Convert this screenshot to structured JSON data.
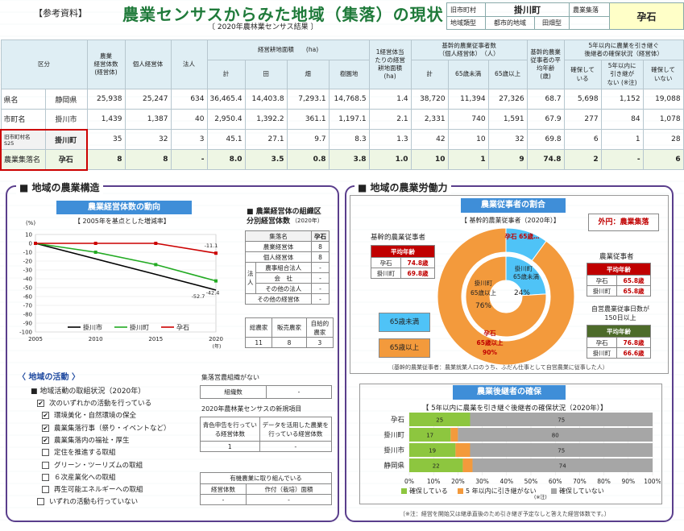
{
  "header": {
    "tag": "【参考資料】",
    "title": "農業センサスからみた地域（集落）の現状",
    "subtitle": "〔 2020年農林業センサス結果 〕",
    "old_town_label": "旧市町村",
    "old_town_value": "掛川町",
    "area_type_label": "地域類型",
    "area_type_value1": "都市的地域",
    "area_type_value2": "田畑型",
    "village_label": "農業集落",
    "village_value": "孕石"
  },
  "main_table": {
    "col_kubun": "区分",
    "col_mgmt": "農業\n経営体数\n(経営体)",
    "col_indiv": "個人経営体",
    "col_corp": "法人",
    "col_land_group": "経営耕地面積　　(ha)",
    "col_total": "計",
    "col_paddy": "田",
    "col_field": "畑",
    "col_orchard": "樹園地",
    "col_per": "1経営体当\nたりの経営\n耕地面積\n(ha)",
    "col_worker_group": "基幹的農業従事者数\n（個人経営体）　（人）",
    "col_wtotal": "計",
    "col_u65": "65歳未満",
    "col_o65": "65歳以上",
    "col_avgage": "基幹的農業\n従事者の平\n均年齢\n(歳)",
    "col_succ_group": "5年以内に農業を引き継ぐ\n後継者の確保状況（経営体）",
    "col_s1": "確保して\nいる",
    "col_s2": "5年以内に\n引き継が\nない (※注)",
    "col_s3": "確保して\nいない",
    "rows": [
      {
        "l1": "県名",
        "l2": "静岡県",
        "v": [
          "25,938",
          "25,247",
          "634",
          "36,465.4",
          "14,403.8",
          "7,293.1",
          "14,768.5",
          "1.4",
          "38,720",
          "11,394",
          "27,326",
          "68.7",
          "5,698",
          "1,152",
          "19,088"
        ]
      },
      {
        "l1": "市町名",
        "l2": "掛川市",
        "v": [
          "1,439",
          "1,387",
          "40",
          "2,950.4",
          "1,392.2",
          "361.1",
          "1,197.1",
          "2.1",
          "2,331",
          "740",
          "1,591",
          "67.9",
          "277",
          "84",
          "1,078"
        ]
      },
      {
        "l1": "旧市町村名\nS25",
        "l2": "掛川町",
        "v": [
          "35",
          "32",
          "3",
          "45.1",
          "27.1",
          "9.7",
          "8.3",
          "1.3",
          "42",
          "10",
          "32",
          "69.8",
          "6",
          "1",
          "28"
        ]
      },
      {
        "l1": "農業集落名",
        "l2": "孕石",
        "v": [
          "8",
          "8",
          "-",
          "8.0",
          "3.5",
          "0.8",
          "3.8",
          "1.0",
          "10",
          "1",
          "9",
          "74.8",
          "2",
          "-",
          "6"
        ]
      }
    ]
  },
  "left_panel": {
    "title": "■ 地域の農業構造",
    "trend_title": "農業経営体数の動向",
    "trend_sub": "【 2005年を基点とした増減率】",
    "org_title": "■ 農業経営体の組織区\n分別経営体数",
    "org_year": "（2020年）",
    "org_header": [
      "集落名",
      "孕石"
    ],
    "org_rows": [
      [
        "農業経営体",
        "8"
      ],
      [
        "個人経営体",
        "8"
      ],
      [
        "農事組合法人",
        "-"
      ],
      [
        "会　社",
        "-"
      ],
      [
        "その他の法人",
        "-"
      ],
      [
        "その他の経営体",
        "-"
      ]
    ],
    "org_houjin": "法\n人",
    "sales_headers": [
      "総農家",
      "販売農家",
      "自給的\n農家"
    ],
    "sales_values": [
      "11",
      "8",
      "3"
    ],
    "activity_title": "〈 地域の活動 〉",
    "activity_sub": "■ 地域活動の取組状況（2020年）",
    "activities": [
      {
        "checked": true,
        "label": "次のいずれかの活動を行っている"
      },
      {
        "checked": true,
        "label": "環境美化・自然環境の保全"
      },
      {
        "checked": true,
        "label": "農業集落行事（祭り・イベントなど）"
      },
      {
        "checked": true,
        "label": "農業集落内の福祉・厚生"
      },
      {
        "checked": false,
        "label": "定住を推進する取組"
      },
      {
        "checked": false,
        "label": "グリーン・ツーリズムの取組"
      },
      {
        "checked": false,
        "label": "６次産業化への取組"
      },
      {
        "checked": false,
        "label": "再生可能エネルギーへの取組"
      },
      {
        "checked": false,
        "label": "いずれの活動も行っていない"
      }
    ],
    "farm_org_title": "集落営農組織がない",
    "farm_org_label": "組織数",
    "farm_org_value": "-",
    "new_items_title": "2020年農林業センサスの新規項目",
    "new_h1": "青色申告を行ってい\nる経営体数",
    "new_h2": "データを活用した農業を\n行っている経営体数",
    "new_v1": "1",
    "new_v2": "-",
    "organic_title": "有機農業に取り組んでいる",
    "organic_h1": "経営体数",
    "organic_h2": "作付（栽培）面積",
    "organic_v1": "-",
    "organic_v2": "-"
  },
  "right_panel": {
    "title": "■ 地域の農業労働力",
    "ratio_title": "農業従事者の割合",
    "ratio_sub": "【 基幹的農業従事者（2020年）】",
    "outer_label": "外円：農業集落",
    "left_label": "基幹的農業従事者",
    "avg_age_label": "平均年齢",
    "left_rows": [
      [
        "孕石",
        "74.8歳"
      ],
      [
        "掛川町",
        "69.8歳"
      ]
    ],
    "legend_u65": "65歳未満",
    "legend_o65": "65歳以上",
    "donut_inner_name": "掛川町",
    "donut_inner_u": "65歳未満",
    "donut_inner_u_pct": "24%",
    "donut_inner_o": "65歳以上",
    "donut_inner_o_pct": "76%",
    "donut_outer_u": "孕石\n65歳…",
    "donut_outer_o_name": "孕石",
    "donut_outer_o": "65歳以上",
    "donut_outer_o_pct": "90%",
    "right_label": "農業従事者",
    "right_rows": [
      [
        "孕石",
        "65.8歳"
      ],
      [
        "掛川町",
        "65.8歳"
      ]
    ],
    "self_label": "自営農業従事日数が\n150日以上",
    "self_rows": [
      [
        "孕石",
        "76.8歳"
      ],
      [
        "掛川町",
        "66.6歳"
      ]
    ],
    "note1": "（基幹的農業従事者：農業就業人口のうち、ふだん仕事として自営農業に従事した人）",
    "succ_title": "農業後継者の確保",
    "succ_sub": "【 5年以内に農業を引き継ぐ後継者の確保状況（2020年）】",
    "succ_legend": [
      "確保している",
      "5 年以内に引き継がない",
      "確保していない"
    ],
    "succ_legend_note": "(※注)",
    "note2": "〔※注：経営を開始又は継承直後のため引き継ぎ予定なしと答えた経営体数です。〕"
  },
  "colors": {
    "green": "#8dc63f",
    "orange": "#f39a3c",
    "gray": "#a6a6a6",
    "blue": "#4fc3f7",
    "purple": "#5a3e8c"
  },
  "chart_data": [
    {
      "type": "line",
      "title": "農業経営体数の動向",
      "subtitle": "【 2005年を基点とした増減率】",
      "x": [
        2005,
        2010,
        2015,
        2020
      ],
      "xlabel": "(年)",
      "ylabel": "(%)",
      "ylim": [
        -100,
        10
      ],
      "yticks": [
        10,
        0,
        -10,
        -20,
        -30,
        -40,
        -50,
        -60,
        -70,
        -80,
        -90,
        -100
      ],
      "series": [
        {
          "name": "掛川市",
          "color": "#000000",
          "values": [
            0,
            -17.5,
            -35,
            -52.7
          ]
        },
        {
          "name": "掛川町",
          "color": "#22aa22",
          "values": [
            0,
            -10,
            -24,
            -42.4
          ]
        },
        {
          "name": "孕石",
          "color": "#cc0000",
          "values": [
            0,
            0,
            0,
            -11.1
          ]
        }
      ],
      "annotations": [
        "-11.1",
        "-52.7",
        "-42.4"
      ]
    },
    {
      "type": "pie",
      "title": "農業従事者の割合",
      "series": [
        {
          "name": "孕石",
          "values": [
            10,
            90
          ],
          "labels": [
            "65歳未満",
            "65歳以上"
          ]
        },
        {
          "name": "掛川町",
          "values": [
            24,
            76
          ],
          "labels": [
            "65歳未満",
            "65歳以上"
          ]
        }
      ]
    },
    {
      "type": "bar",
      "title": "5年以内に農業を引き継ぐ後継者の確保状況（2020年）",
      "categories": [
        "孕石",
        "掛川町",
        "掛川市",
        "静岡県"
      ],
      "series": [
        {
          "name": "確保している",
          "values": [
            25,
            17,
            19,
            22
          ]
        },
        {
          "name": "5 年以内に引き継がない",
          "values": [
            0,
            3,
            6,
            4
          ]
        },
        {
          "name": "確保していない",
          "values": [
            75,
            80,
            75,
            74
          ]
        }
      ],
      "xlim": [
        0,
        100
      ],
      "xticks": [
        "0%",
        "10%",
        "20%",
        "30%",
        "40%",
        "50%",
        "60%",
        "70%",
        "80%",
        "90%",
        "100%"
      ]
    }
  ]
}
